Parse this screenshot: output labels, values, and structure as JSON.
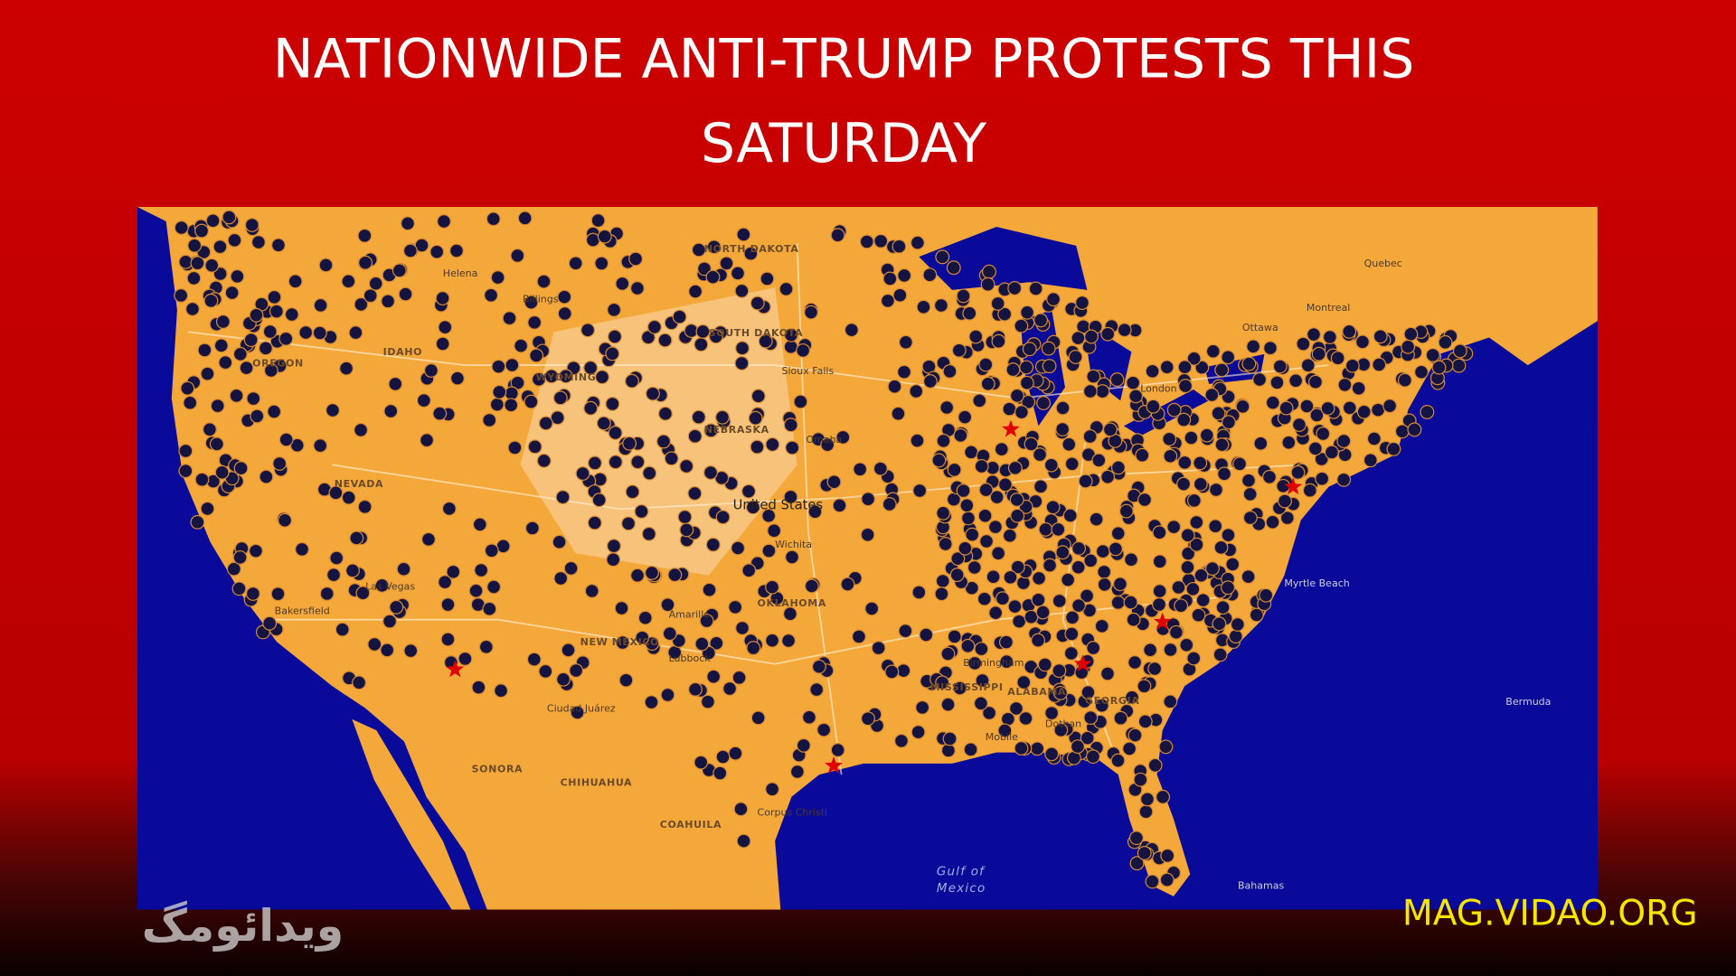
{
  "header": {
    "title_lines": [
      "NATIONWIDE ANTI-TRUMP PROTESTS THIS",
      "SATURDAY"
    ]
  },
  "map": {
    "labels": [
      "United States",
      "Gulf of",
      "Mexico",
      "Bermuda",
      "NEBRASKA",
      "NEVADA",
      "Las Vegas",
      "Amarillo",
      "Lubbock",
      "Birmingham",
      "Montreal",
      "Quebec",
      "Ottawa",
      "Wichita",
      "Bahamas",
      "IDAHO",
      "WYOMING",
      "OREGON",
      "Helena",
      "Billings",
      "Sioux Falls",
      "Omaha",
      "Bakersfield",
      "Mobile",
      "Dothan",
      "Ciudad Juárez",
      "SONORA",
      "CHIHUAHUA",
      "COAHUILA",
      "NORTH DAKOTA",
      "SOUTH DAKOTA",
      "London",
      "Corpus Christi",
      "MISSISSIPPI",
      "ALABAMA",
      "GEORGIA",
      "OKLAHOMA",
      "NEW MEXICO",
      "Myrtle Beach"
    ]
  },
  "watermark": {
    "site": "MAG.VIDAO.ORG",
    "logo": "ویدائومگ"
  }
}
